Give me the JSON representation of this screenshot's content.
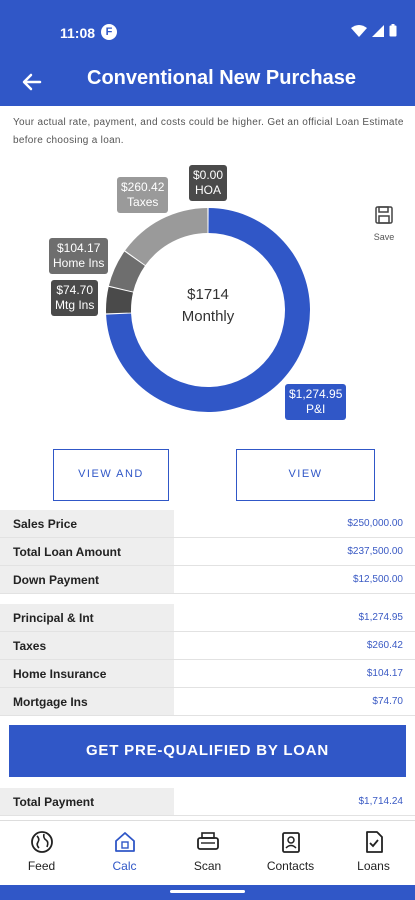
{
  "status_bar": {
    "time": "11:08",
    "app_icon": "F"
  },
  "header": {
    "title": "Conventional New Purchase",
    "back_icon": "arrow-left-icon"
  },
  "disclaimer": "Your actual rate, payment, and costs could be higher. Get an official Loan Estimate before choosing a loan.",
  "chart": {
    "center_amount": "$1714",
    "center_label": "Monthly",
    "slices": [
      {
        "label": "P&I",
        "value": 1274.95,
        "amount": "$1,274.95",
        "color": "#3057c7"
      },
      {
        "label": "Mtg Ins",
        "value": 74.7,
        "amount": "$74.70",
        "color": "#4a4a4a"
      },
      {
        "label": "Home Ins",
        "value": 104.17,
        "amount": "$104.17",
        "color": "#6e6e6e"
      },
      {
        "label": "Taxes",
        "value": 260.42,
        "amount": "$260.42",
        "color": "#9a9a9a"
      },
      {
        "label": "HOA",
        "value": 0.0,
        "amount": "$0.00",
        "color": "#4a4a4a"
      }
    ]
  },
  "chart_data": {
    "type": "pie",
    "title": "",
    "categories": [
      "P&I",
      "Mtg Ins",
      "Home Ins",
      "Taxes",
      "HOA"
    ],
    "values": [
      1274.95,
      74.7,
      104.17,
      260.42,
      0.0
    ],
    "center_text": [
      "$1714",
      "Monthly"
    ]
  },
  "save": {
    "label": "Save",
    "icon": "floppy-disk-icon"
  },
  "buttons": {
    "view_share": "VIEW AND SHARE",
    "view_amortization": "VIEW AMORTIZATION"
  },
  "loan_table": [
    {
      "label": "Sales Price",
      "value": "$250,000.00"
    },
    {
      "label": "Total Loan Amount",
      "value": "$237,500.00"
    },
    {
      "label": "Down Payment",
      "value": "$12,500.00"
    }
  ],
  "payment_table": [
    {
      "label": "Principal & Int",
      "value": "$1,274.95"
    },
    {
      "label": "Taxes",
      "value": "$260.42"
    },
    {
      "label": "Home Insurance",
      "value": "$104.17"
    },
    {
      "label": "Mortgage Ins",
      "value": "$74.70"
    }
  ],
  "cta": "GET PRE-QUALIFIED BY LOAN",
  "total": {
    "label": "Total Payment",
    "value": "$1,714.24"
  },
  "nav": [
    {
      "label": "Feed",
      "icon": "globe-icon"
    },
    {
      "label": "Calc",
      "icon": "calculator-home-icon"
    },
    {
      "label": "Scan",
      "icon": "scanner-icon"
    },
    {
      "label": "Contacts",
      "icon": "contact-card-icon"
    },
    {
      "label": "Loans",
      "icon": "document-check-icon"
    }
  ],
  "colors": {
    "primary": "#3057c7",
    "value_text": "#3a5ac4",
    "label_bg": "#eeeeee"
  }
}
